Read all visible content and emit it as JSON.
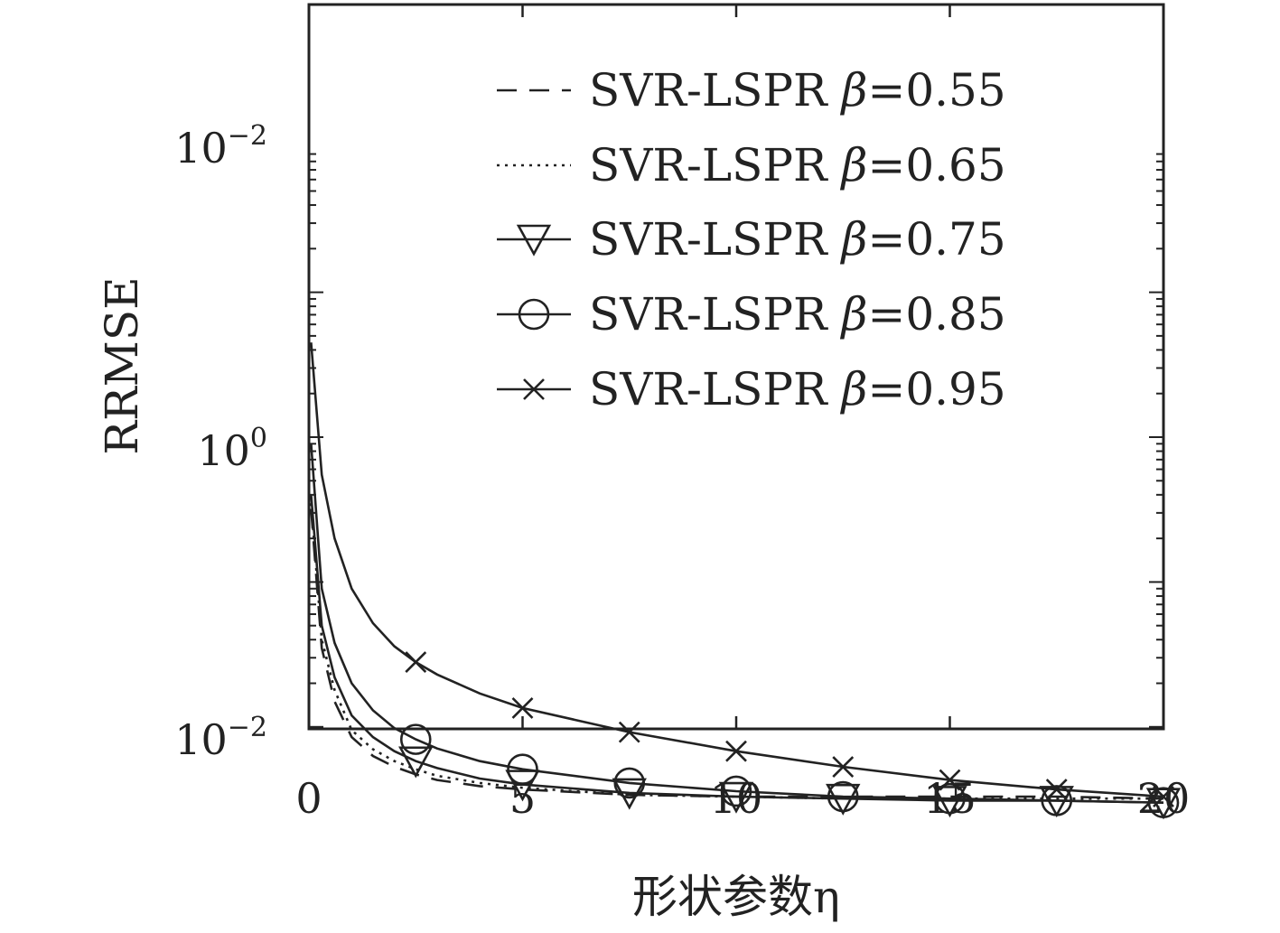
{
  "chart_data": {
    "type": "line",
    "xlabel": "形状参数η",
    "ylabel": "RRMSE",
    "x_tick_labels": [
      "0",
      "5",
      "10",
      "15",
      "20"
    ],
    "y_tick_labels": [
      {
        "base": "10",
        "exp": "−2"
      },
      {
        "base": "10",
        "exp": "0"
      },
      {
        "base": "10",
        "exp": "−2"
      }
    ],
    "xlim": [
      0,
      20
    ],
    "legend_position": "top-right",
    "grid": false,
    "series": [
      {
        "name": "SVR-LSPR β=0.55",
        "name_prefix": "SVR-LSPR ",
        "name_beta": "β",
        "name_value": "=0.55",
        "line_style": "dashed",
        "marker": "none",
        "x": [
          0.05,
          0.3,
          0.6,
          1.0,
          1.5,
          2.0,
          2.5,
          3.0,
          4.0,
          5.0,
          7.5,
          10,
          12.5,
          15,
          17.5,
          20
        ],
        "y": [
          0.32,
          0.035,
          0.015,
          0.0085,
          0.0063,
          0.0053,
          0.0047,
          0.0043,
          0.0039,
          0.0037,
          0.0034,
          0.0033,
          0.0033,
          0.0033,
          0.0033,
          0.0032
        ]
      },
      {
        "name": "SVR-LSPR β=0.65",
        "name_prefix": "SVR-LSPR ",
        "name_beta": "β",
        "name_value": "=0.65",
        "line_style": "dotted",
        "marker": "none",
        "x": [
          0.05,
          0.3,
          0.6,
          1.0,
          1.5,
          2.0,
          2.5,
          3.0,
          4.0,
          5.0,
          7.5,
          10,
          12.5,
          15,
          17.5,
          20
        ],
        "y": [
          0.35,
          0.04,
          0.018,
          0.0095,
          0.007,
          0.0058,
          0.0051,
          0.0046,
          0.0041,
          0.0038,
          0.0034,
          0.0033,
          0.0032,
          0.0032,
          0.0032,
          0.0032
        ]
      },
      {
        "name": "SVR-LSPR β=0.75",
        "name_prefix": "SVR-LSPR ",
        "name_beta": "β",
        "name_value": "=0.75",
        "line_style": "solid",
        "marker": "triangle-down",
        "x": [
          0.05,
          0.3,
          0.6,
          1.0,
          1.5,
          2.0,
          2.5,
          3.0,
          4.0,
          5.0,
          7.5,
          10,
          12.5,
          15,
          17.5,
          20
        ],
        "y": [
          0.4,
          0.05,
          0.022,
          0.012,
          0.0085,
          0.0068,
          0.0058,
          0.0052,
          0.0044,
          0.004,
          0.0035,
          0.0033,
          0.0032,
          0.0031,
          0.0031,
          0.003
        ]
      },
      {
        "name": "SVR-LSPR β=0.85",
        "name_prefix": "SVR-LSPR ",
        "name_beta": "β",
        "name_value": "=0.85",
        "line_style": "solid",
        "marker": "circle",
        "x": [
          0.05,
          0.3,
          0.6,
          1.0,
          1.5,
          2.0,
          2.5,
          3.0,
          4.0,
          5.0,
          7.5,
          10,
          12.5,
          15,
          17.5,
          20
        ],
        "y": [
          0.9,
          0.09,
          0.038,
          0.02,
          0.013,
          0.0098,
          0.0082,
          0.0071,
          0.0058,
          0.0051,
          0.0041,
          0.0036,
          0.0033,
          0.0032,
          0.0031,
          0.003
        ]
      },
      {
        "name": "SVR-LSPR β=0.95",
        "name_prefix": "SVR-LSPR ",
        "name_beta": "β",
        "name_value": "=0.95",
        "line_style": "solid",
        "marker": "x",
        "x": [
          0.05,
          0.3,
          0.6,
          1.0,
          1.5,
          2.0,
          2.5,
          3.0,
          4.0,
          5.0,
          7.5,
          10,
          12.5,
          15,
          17.5,
          20
        ],
        "y": [
          4.5,
          0.55,
          0.2,
          0.09,
          0.052,
          0.036,
          0.028,
          0.023,
          0.017,
          0.0135,
          0.0092,
          0.0068,
          0.0053,
          0.0043,
          0.0037,
          0.0033
        ]
      }
    ],
    "marker_x": [
      2.5,
      5,
      7.5,
      10,
      12.5,
      15,
      17.5,
      20
    ]
  }
}
